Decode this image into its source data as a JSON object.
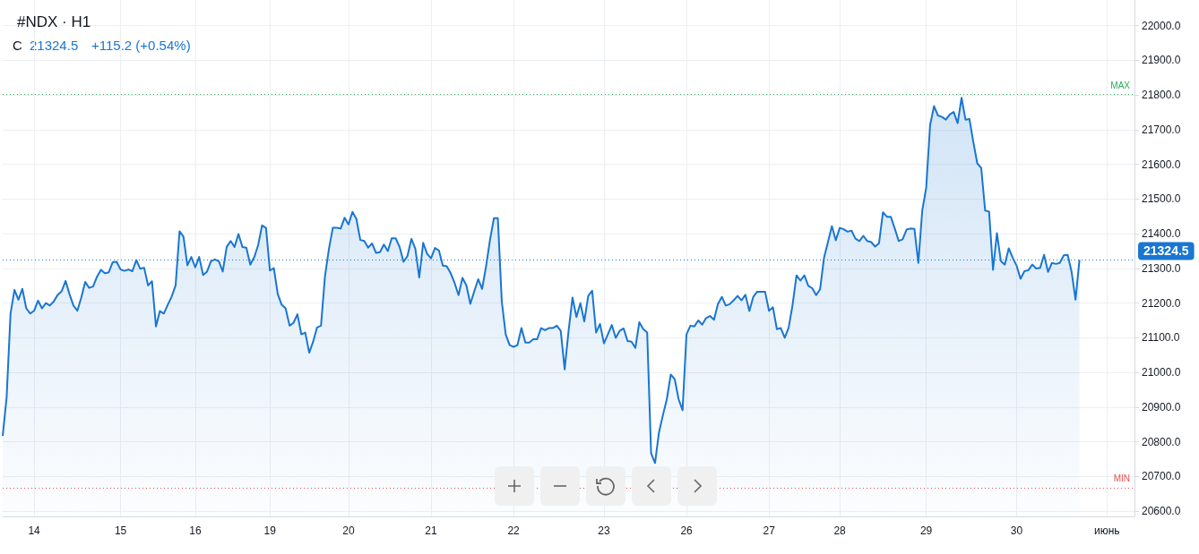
{
  "chart_data": {
    "type": "area",
    "title": "#NDX · H1",
    "annotations": [
      "C",
      "21324.5",
      "+115.2 (+0.54%)"
    ],
    "categories": [
      null,
      null,
      null,
      null,
      null,
      null,
      null,
      null,
      "14",
      null,
      null,
      null,
      null,
      null,
      null,
      null,
      null,
      null,
      null,
      null,
      null,
      null,
      null,
      null,
      null,
      null,
      null,
      null,
      null,
      null,
      "15",
      null,
      null,
      null,
      null,
      null,
      null,
      null,
      null,
      null,
      null,
      null,
      null,
      null,
      null,
      null,
      null,
      null,
      null,
      "16",
      null,
      null,
      null,
      null,
      null,
      null,
      null,
      null,
      null,
      null,
      null,
      null,
      null,
      null,
      null,
      null,
      null,
      null,
      "19",
      null,
      null,
      null,
      null,
      null,
      null,
      null,
      null,
      null,
      null,
      null,
      null,
      null,
      null,
      null,
      null,
      null,
      null,
      null,
      "20",
      null,
      null,
      null,
      null,
      null,
      null,
      null,
      null,
      null,
      null,
      null,
      null,
      null,
      null,
      null,
      null,
      null,
      null,
      null,
      null,
      "21",
      null,
      null,
      null,
      null,
      null,
      null,
      null,
      null,
      null,
      null,
      null,
      null,
      null,
      null,
      null,
      null,
      null,
      null,
      null,
      null,
      "22",
      null,
      null,
      null,
      null,
      null,
      null,
      null,
      null,
      null,
      null,
      null,
      null,
      null,
      null,
      null,
      null,
      null,
      null,
      null,
      null,
      null,
      null,
      "23",
      null,
      null,
      null,
      null,
      null,
      null,
      null,
      null,
      null,
      null,
      null,
      null,
      null,
      null,
      null,
      null,
      null,
      null,
      null,
      null,
      "26",
      null,
      null,
      null,
      null,
      null,
      null,
      null,
      null,
      null,
      null,
      null,
      null,
      null,
      null,
      null,
      null,
      null,
      null,
      null,
      null,
      "27",
      null,
      null,
      null,
      null,
      null,
      null,
      null,
      null,
      null,
      null,
      null,
      null,
      null,
      null,
      null,
      null,
      null,
      "28",
      null,
      null,
      null,
      null,
      null,
      null,
      null,
      null,
      null,
      null,
      null,
      null,
      null,
      null,
      null,
      null,
      null,
      null,
      null,
      null,
      null,
      "29",
      null,
      null,
      null,
      null,
      null,
      null,
      null,
      null,
      null,
      null,
      null,
      null,
      null,
      null,
      null,
      null,
      null,
      null,
      null,
      null,
      null,
      null,
      "30",
      null,
      null,
      null,
      null,
      null,
      null,
      null,
      null,
      null,
      null,
      null,
      null,
      null,
      null,
      null,
      null,
      null,
      null,
      null,
      null,
      null,
      null,
      "июнь",
      null,
      null,
      null,
      null,
      null,
      null,
      null
    ],
    "series": [
      {
        "color": "#1976d2",
        "values": [
          20817,
          20928,
          21170,
          21238,
          21210,
          21241,
          21185,
          21170,
          21178,
          21207,
          21185,
          21200,
          21193,
          21205,
          21224,
          21234,
          21264,
          21226,
          21193,
          21178,
          21216,
          21261,
          21244,
          21248,
          21276,
          21296,
          21286,
          21289,
          21318,
          21319,
          21297,
          21293,
          21297,
          21292,
          21324,
          21299,
          21302,
          21251,
          21263,
          21133,
          21177,
          21170,
          21195,
          21219,
          21251,
          21407,
          21392,
          21309,
          21333,
          21303,
          21333,
          21281,
          21291,
          21321,
          21326,
          21321,
          21291,
          21362,
          21379,
          21362,
          21399,
          21362,
          21360,
          21311,
          21332,
          21367,
          21424,
          21417,
          21294,
          21301,
          21226,
          21195,
          21185,
          21135,
          21143,
          21168,
          21110,
          21115,
          21057,
          21089,
          21130,
          21135,
          21276,
          21355,
          21417,
          21417,
          21415,
          21446,
          21427,
          21463,
          21443,
          21382,
          21379,
          21360,
          21372,
          21345,
          21347,
          21369,
          21350,
          21387,
          21387,
          21362,
          21319,
          21336,
          21385,
          21357,
          21274,
          21374,
          21342,
          21329,
          21359,
          21352,
          21308,
          21306,
          21286,
          21258,
          21223,
          21273,
          21251,
          21198,
          21234,
          21269,
          21241,
          21306,
          21382,
          21445,
          21445,
          21205,
          21110,
          21079,
          21074,
          21079,
          21128,
          21086,
          21086,
          21096,
          21096,
          21128,
          21122,
          21128,
          21128,
          21135,
          21120,
          21009,
          21120,
          21216,
          21160,
          21200,
          21147,
          21221,
          21236,
          21115,
          21140,
          21084,
          21110,
          21137,
          21100,
          21120,
          21127,
          21091,
          21089,
          21071,
          21145,
          21125,
          21115,
          20767,
          20739,
          20827,
          20877,
          20923,
          20994,
          20981,
          20923,
          20891,
          21110,
          21135,
          21133,
          21150,
          21138,
          21157,
          21163,
          21152,
          21197,
          21218,
          21193,
          21197,
          21208,
          21221,
          21208,
          21224,
          21177,
          21218,
          21233,
          21233,
          21233,
          21178,
          21188,
          21125,
          21128,
          21100,
          21129,
          21195,
          21280,
          21265,
          21280,
          21250,
          21243,
          21223,
          21240,
          21331,
          21376,
          21422,
          21381,
          21417,
          21413,
          21406,
          21409,
          21386,
          21379,
          21394,
          21379,
          21376,
          21363,
          21373,
          21462,
          21449,
          21449,
          21415,
          21379,
          21384,
          21412,
          21415,
          21414,
          21316,
          21467,
          21533,
          21714,
          21768,
          21741,
          21737,
          21729,
          21744,
          21751,
          21719,
          21792,
          21729,
          21731,
          21664,
          21603,
          21590,
          21467,
          21464,
          21296,
          21402,
          21321,
          21311,
          21358,
          21331,
          21308,
          21270,
          21292,
          21295,
          21311,
          21300,
          21302,
          21339,
          21290,
          21316,
          21313,
          21316,
          21338,
          21339,
          21290,
          21210,
          21324.5,
          null,
          null,
          null,
          null,
          null,
          null,
          null,
          null,
          null,
          null,
          null,
          null,
          null,
          null
        ]
      }
    ],
    "ylim": [
      20585,
      22074
    ],
    "yticks": [
      {
        "value": 20600,
        "label": "20600.0"
      },
      {
        "value": 20700,
        "label": "20700.0"
      },
      {
        "value": 20800,
        "label": "20800.0"
      },
      {
        "value": 20900,
        "label": "20900.0"
      },
      {
        "value": 21000,
        "label": "21000.0"
      },
      {
        "value": 21100,
        "label": "21100.0"
      },
      {
        "value": 21200,
        "label": "21200.0"
      },
      {
        "value": 21300,
        "label": "21300.0"
      },
      {
        "value": 21400,
        "label": "21400.0"
      },
      {
        "value": 21500,
        "label": "21500.0"
      },
      {
        "value": 21600,
        "label": "21600.0"
      },
      {
        "value": 21700,
        "label": "21700.0"
      },
      {
        "value": 21800,
        "label": "21800.0"
      },
      {
        "value": 21900,
        "label": "21900.0"
      },
      {
        "value": 22000,
        "label": "22000.0"
      }
    ],
    "ref_lines": [
      {
        "axis": "y",
        "value": 21803,
        "label": "MAX",
        "color": "#2eaa5f",
        "line_style": "dotted"
      },
      {
        "axis": "y",
        "value": 20668,
        "label": "MIN",
        "color": "#e5534b",
        "line_style": "dotted"
      },
      {
        "axis": "y",
        "value": 21324.5,
        "label": "21324.5",
        "color": "#1976d2",
        "line_style": "dotted"
      }
    ],
    "grid": true,
    "marker": "none",
    "line_style": "solid"
  }
}
